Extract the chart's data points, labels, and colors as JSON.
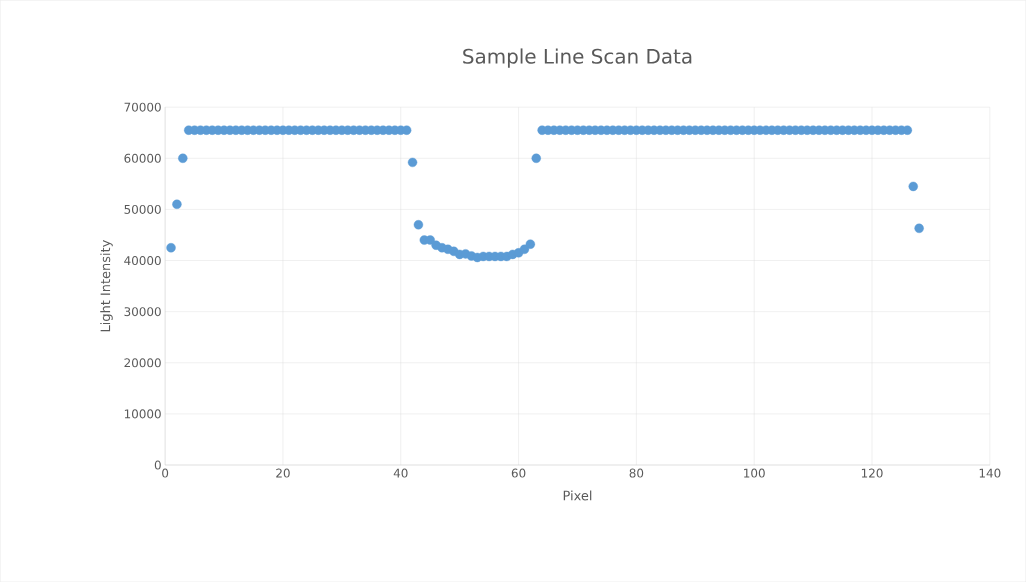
{
  "chart_data": {
    "type": "scatter",
    "title": "Sample Line Scan Data",
    "xlabel": "Pixel",
    "ylabel": "Light Intensity",
    "x": [
      1,
      2,
      3,
      4,
      5,
      6,
      7,
      8,
      9,
      10,
      11,
      12,
      13,
      14,
      15,
      16,
      17,
      18,
      19,
      20,
      21,
      22,
      23,
      24,
      25,
      26,
      27,
      28,
      29,
      30,
      31,
      32,
      33,
      34,
      35,
      36,
      37,
      38,
      39,
      40,
      41,
      42,
      43,
      44,
      45,
      46,
      47,
      48,
      49,
      50,
      51,
      52,
      53,
      54,
      55,
      56,
      57,
      58,
      59,
      60,
      61,
      62,
      63,
      64,
      65,
      66,
      67,
      68,
      69,
      70,
      71,
      72,
      73,
      74,
      75,
      76,
      77,
      78,
      79,
      80,
      81,
      82,
      83,
      84,
      85,
      86,
      87,
      88,
      89,
      90,
      91,
      92,
      93,
      94,
      95,
      96,
      97,
      98,
      99,
      100,
      101,
      102,
      103,
      104,
      105,
      106,
      107,
      108,
      109,
      110,
      111,
      112,
      113,
      114,
      115,
      116,
      117,
      118,
      119,
      120,
      121,
      122,
      123,
      124,
      125,
      126,
      127,
      128
    ],
    "values": [
      42500,
      51000,
      60000,
      65500,
      65500,
      65500,
      65500,
      65500,
      65500,
      65500,
      65500,
      65500,
      65500,
      65500,
      65500,
      65500,
      65500,
      65500,
      65500,
      65500,
      65500,
      65500,
      65500,
      65500,
      65500,
      65500,
      65500,
      65500,
      65500,
      65500,
      65500,
      65500,
      65500,
      65500,
      65500,
      65500,
      65500,
      65500,
      65500,
      65500,
      65500,
      59200,
      47000,
      44000,
      44000,
      43000,
      42500,
      42200,
      41800,
      41200,
      41300,
      40900,
      40600,
      40800,
      40800,
      40800,
      40800,
      40800,
      41200,
      41500,
      42200,
      43200,
      60000,
      65500,
      65500,
      65500,
      65500,
      65500,
      65500,
      65500,
      65500,
      65500,
      65500,
      65500,
      65500,
      65500,
      65500,
      65500,
      65500,
      65500,
      65500,
      65500,
      65500,
      65500,
      65500,
      65500,
      65500,
      65500,
      65500,
      65500,
      65500,
      65500,
      65500,
      65500,
      65500,
      65500,
      65500,
      65500,
      65500,
      65500,
      65500,
      65500,
      65500,
      65500,
      65500,
      65500,
      65500,
      65500,
      65500,
      65500,
      65500,
      65500,
      65500,
      65500,
      65500,
      65500,
      65500,
      65500,
      65500,
      65500,
      65500,
      65500,
      65500,
      65500,
      65500,
      65500,
      54500,
      46300
    ],
    "color": "#5b9bd5",
    "marker": "circle",
    "grid": true,
    "xlim": [
      0,
      140
    ],
    "xticks": [
      0,
      20,
      40,
      60,
      80,
      100,
      120,
      140
    ],
    "ylim": [
      0,
      70000
    ],
    "yticks": [
      0,
      10000,
      20000,
      30000,
      40000,
      50000,
      60000,
      70000
    ]
  }
}
